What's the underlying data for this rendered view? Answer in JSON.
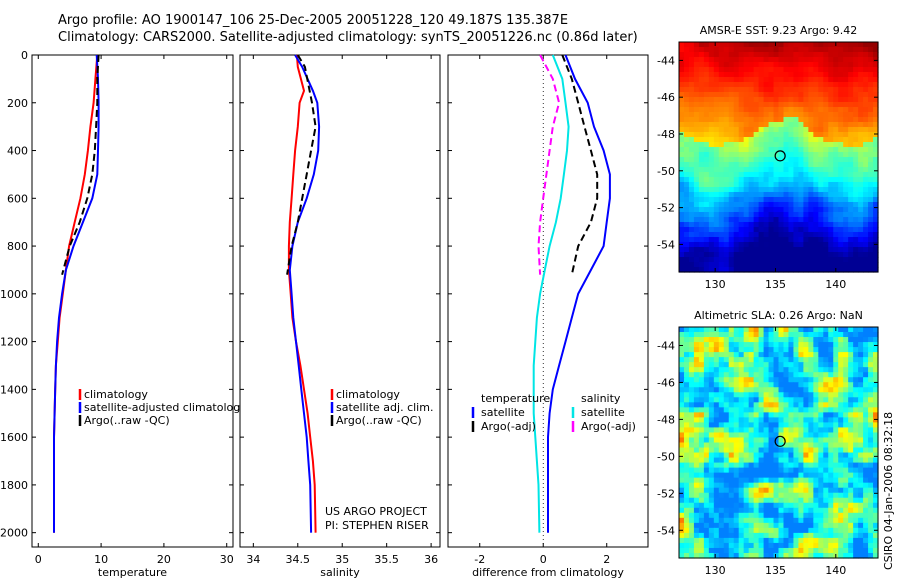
{
  "header": {
    "line1": "Argo profile: AO 1900147_106 25-Dec-2005 20051228_120 49.187S 135.387E",
    "line2": "Climatology: CARS2000. Satellite-adjusted climatology: synTS_20051226.nc (0.86d later)"
  },
  "credits": {
    "project": "US ARGO PROJECT",
    "pi": "PI: STEPHEN RISER",
    "stamp": "CSIRO 04-Jan-2006 08:32:18"
  },
  "colors": {
    "climatology": "#ff0000",
    "satellite": "#0000ff",
    "argo": "#000000",
    "sal_satellite": "#00e5e5",
    "sal_argo": "#ff00ff"
  },
  "chart_data": [
    {
      "type": "line",
      "xlabel": "temperature",
      "ylabel": "",
      "xlim": [
        -1,
        31
      ],
      "ylim": [
        2060,
        0
      ],
      "xticks": [
        0,
        10,
        20,
        30
      ],
      "yticks": [
        0,
        200,
        400,
        600,
        800,
        1000,
        1200,
        1400,
        1600,
        1800,
        2000
      ],
      "legend": {
        "placement": "lower-right",
        "entries": [
          "climatology",
          "satellite-adjusted climatology",
          "Argo(..raw -QC)"
        ]
      },
      "series": [
        {
          "name": "climatology",
          "color": "climatology",
          "dash": false,
          "x": [
            9.4,
            9.1,
            8.8,
            8.3,
            7.9,
            7.4,
            6.7,
            5.8,
            4.9,
            4.4,
            3.9,
            3.4,
            3.1,
            2.8,
            2.7,
            2.6,
            2.5,
            2.5,
            2.5
          ],
          "y": [
            0,
            100,
            200,
            300,
            400,
            500,
            600,
            700,
            800,
            900,
            1000,
            1100,
            1200,
            1300,
            1400,
            1500,
            1600,
            1800,
            2000
          ]
        },
        {
          "name": "satellite-adjusted climatology",
          "color": "satellite",
          "dash": false,
          "x": [
            9.3,
            9.5,
            9.6,
            9.6,
            9.5,
            9.4,
            8.6,
            7.1,
            5.6,
            4.4,
            3.8,
            3.3,
            3.0,
            2.8,
            2.7,
            2.6,
            2.5,
            2.5,
            2.5
          ],
          "y": [
            0,
            100,
            200,
            300,
            400,
            500,
            600,
            700,
            800,
            900,
            1000,
            1100,
            1200,
            1300,
            1400,
            1500,
            1600,
            1800,
            2000
          ]
        },
        {
          "name": "Argo(..raw -QC)",
          "color": "argo",
          "dash": true,
          "x": [
            9.6,
            9.4,
            9.4,
            9.2,
            9.0,
            8.6,
            7.8,
            6.6,
            5.0,
            3.8
          ],
          "y": [
            0,
            100,
            200,
            300,
            400,
            500,
            600,
            700,
            800,
            920
          ]
        }
      ]
    },
    {
      "type": "line",
      "xlabel": "salinity",
      "ylabel": "",
      "xlim": [
        33.85,
        36.1
      ],
      "ylim": [
        2060,
        0
      ],
      "xticks": [
        34,
        34.5,
        35,
        35.5,
        36
      ],
      "yticks": [
        0,
        200,
        400,
        600,
        800,
        1000,
        1200,
        1400,
        1600,
        1800,
        2000
      ],
      "legend": {
        "placement": "lower-right",
        "entries": [
          "climatology",
          "satellite adj. clim.",
          "Argo(..raw -QC)"
        ]
      },
      "series": [
        {
          "name": "climatology",
          "color": "climatology",
          "dash": false,
          "x": [
            34.49,
            34.5,
            34.57,
            34.52,
            34.5,
            34.47,
            34.45,
            34.43,
            34.41,
            34.4,
            34.4,
            34.42,
            34.44,
            34.48,
            34.53,
            34.57,
            34.61,
            34.64,
            34.67,
            34.69,
            34.7
          ],
          "y": [
            0,
            50,
            150,
            200,
            300,
            400,
            500,
            600,
            700,
            800,
            900,
            1000,
            1100,
            1200,
            1300,
            1400,
            1500,
            1600,
            1700,
            1800,
            2000
          ]
        },
        {
          "name": "satellite adj. clim.",
          "color": "satellite",
          "dash": false,
          "x": [
            34.47,
            34.55,
            34.67,
            34.72,
            34.74,
            34.73,
            34.68,
            34.6,
            34.5,
            34.44,
            34.41,
            34.43,
            34.45,
            34.48,
            34.51,
            34.54,
            34.57,
            34.6,
            34.62,
            34.64,
            34.65
          ],
          "y": [
            0,
            50,
            150,
            200,
            300,
            400,
            500,
            600,
            700,
            800,
            900,
            1000,
            1100,
            1200,
            1300,
            1400,
            1500,
            1600,
            1700,
            1800,
            2000
          ]
        },
        {
          "name": "Argo(..raw -QC)",
          "color": "argo",
          "dash": true,
          "x": [
            34.5,
            34.58,
            34.66,
            34.7,
            34.65,
            34.6,
            34.55,
            34.5,
            34.43,
            34.38
          ],
          "y": [
            0,
            50,
            200,
            300,
            400,
            500,
            600,
            700,
            800,
            920
          ]
        }
      ]
    },
    {
      "type": "line",
      "xlabel": "difference from climatology",
      "ylabel": "",
      "xlim": [
        -3.0,
        3.3
      ],
      "ylim": [
        2060,
        0
      ],
      "xticks": [
        -2,
        0,
        2
      ],
      "yticks": [
        0,
        200,
        400,
        600,
        800,
        1000,
        1200,
        1400,
        1600,
        1800,
        2000
      ],
      "legend": {
        "placement": "lower-right",
        "columns": [
          {
            "title": "temperature",
            "entries": [
              "satellite",
              "Argo(-adj)"
            ]
          },
          {
            "title": "salinity",
            "entries": [
              "satellite",
              "Argo(-adj)"
            ]
          }
        ]
      },
      "series": [
        {
          "name": "satellite",
          "group": "temperature",
          "color": "satellite",
          "dash": false,
          "x": [
            0.7,
            1.0,
            1.4,
            1.6,
            1.9,
            2.1,
            2.1,
            2.0,
            1.9,
            1.5,
            1.1,
            0.9,
            0.7,
            0.5,
            0.3,
            0.2,
            0.15,
            0.15
          ],
          "y": [
            0,
            100,
            200,
            300,
            400,
            500,
            600,
            700,
            800,
            900,
            1000,
            1100,
            1200,
            1300,
            1400,
            1500,
            1600,
            2000
          ]
        },
        {
          "name": "Argo(-adj)",
          "group": "temperature",
          "color": "argo",
          "dash": true,
          "x": [
            0.6,
            0.9,
            1.1,
            1.3,
            1.5,
            1.7,
            1.7,
            1.5,
            1.1,
            0.9
          ],
          "y": [
            0,
            100,
            200,
            300,
            400,
            500,
            600,
            700,
            800,
            920
          ]
        },
        {
          "name": "satellite",
          "group": "salinity",
          "color": "sal_satellite",
          "dash": false,
          "x": [
            0.3,
            0.6,
            0.7,
            0.8,
            0.75,
            0.65,
            0.55,
            0.4,
            0.2,
            0.05,
            -0.1,
            -0.2,
            -0.25,
            -0.3,
            -0.3,
            -0.3,
            -0.25,
            -0.2,
            -0.15,
            -0.12
          ],
          "y": [
            0,
            100,
            200,
            300,
            400,
            500,
            600,
            700,
            800,
            900,
            1000,
            1100,
            1200,
            1300,
            1400,
            1500,
            1600,
            1700,
            1800,
            2000
          ]
        },
        {
          "name": "Argo(-adj)",
          "group": "salinity",
          "color": "sal_argo",
          "dash": true,
          "x": [
            -0.1,
            0.3,
            0.5,
            0.3,
            0.2,
            0.1,
            0.0,
            -0.1,
            -0.15,
            -0.1
          ],
          "y": [
            0,
            100,
            200,
            300,
            400,
            500,
            600,
            700,
            800,
            920
          ]
        }
      ],
      "annotations": [
        "US ARGO PROJECT",
        "PI: STEPHEN RISER"
      ]
    },
    {
      "type": "heatmap",
      "title": "AMSR-E SST: 9.23 Argo: 9.42",
      "xlim": [
        127,
        143.5
      ],
      "ylim": [
        -55.5,
        -43
      ],
      "xticks": [
        130,
        135,
        140
      ],
      "yticks": [
        -44,
        -46,
        -48,
        -50,
        -52,
        -54
      ],
      "marker": {
        "lon": 135.387,
        "lat": -49.187
      }
    },
    {
      "type": "heatmap",
      "title": "Altimetric SLA: 0.26 Argo: NaN",
      "xlim": [
        127,
        143.5
      ],
      "ylim": [
        -55.5,
        -43
      ],
      "xticks": [
        130,
        135,
        140
      ],
      "yticks": [
        -44,
        -46,
        -48,
        -50,
        -52,
        -54
      ],
      "marker": {
        "lon": 135.387,
        "lat": -49.187
      }
    }
  ]
}
